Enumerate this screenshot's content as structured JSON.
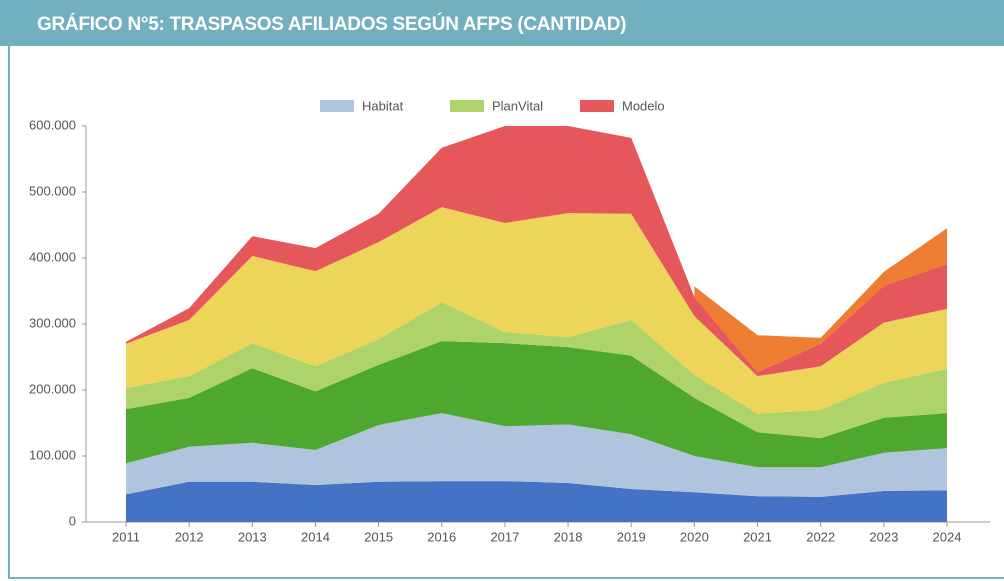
{
  "header": {
    "title": "GRÁFICO N°5: TRASPASOS AFILIADOS SEGÚN AFPS (CANTIDAD)"
  },
  "chart_data": {
    "type": "stacked-area",
    "categories": [
      "2011",
      "2012",
      "2013",
      "2014",
      "2015",
      "2016",
      "2017",
      "2018",
      "2019",
      "2020",
      "2021",
      "2022",
      "2023",
      "2024"
    ],
    "series": [
      {
        "color": "#4472c4",
        "values": [
          42000,
          61000,
          61000,
          56000,
          61000,
          62000,
          62000,
          59000,
          50000,
          45000,
          39000,
          38000,
          47000,
          48000
        ]
      },
      {
        "name": "Habitat",
        "color": "#b0c4de",
        "values": [
          47000,
          53000,
          59000,
          53000,
          86000,
          103000,
          83000,
          89000,
          83000,
          55000,
          44000,
          45000,
          58000,
          64000
        ]
      },
      {
        "color": "#4ea72e",
        "values": [
          82000,
          74000,
          113000,
          89000,
          91000,
          109000,
          126000,
          117000,
          119000,
          88000,
          53000,
          44000,
          53000,
          53000
        ]
      },
      {
        "name": "PlanVital",
        "color": "#aed36b",
        "values": [
          32000,
          33000,
          38000,
          38000,
          39000,
          59000,
          17000,
          15000,
          54000,
          35000,
          28000,
          43000,
          53000,
          67000
        ]
      },
      {
        "color": "#edd55a",
        "values": [
          67000,
          85000,
          132000,
          144000,
          147000,
          144000,
          165000,
          188000,
          161000,
          89000,
          57000,
          66000,
          91000,
          91000
        ]
      },
      {
        "name": "Modelo",
        "color": "#e5575a",
        "values": [
          3000,
          18000,
          30000,
          35000,
          43000,
          90000,
          147000,
          132000,
          115000,
          29000,
          6000,
          34000,
          56000,
          68000
        ]
      },
      {
        "color": "#ed7d31",
        "values": [
          null,
          null,
          null,
          null,
          null,
          null,
          null,
          null,
          null,
          16000,
          56000,
          9000,
          21000,
          54000
        ]
      }
    ],
    "ylim": [
      0,
      600000
    ],
    "yticks": [
      0,
      {
        "value": 100000,
        "label": "100.000"
      },
      {
        "value": 200000,
        "label": "200.000"
      },
      {
        "value": 300000,
        "label": "300.000"
      },
      {
        "value": 400000,
        "label": "400.000"
      },
      {
        "value": 500000,
        "label": "500.000"
      },
      {
        "value": 600000,
        "label": "600.000"
      }
    ],
    "legend": "top"
  }
}
